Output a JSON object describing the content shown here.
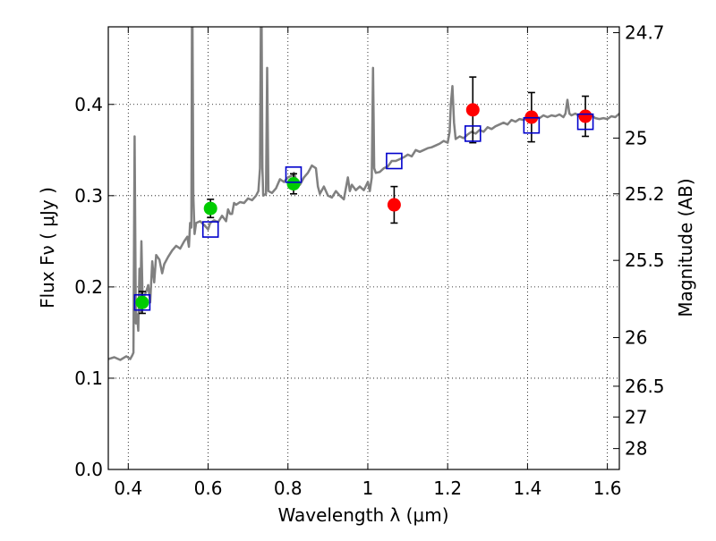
{
  "chart_data": {
    "type": "scatter",
    "xlabel": "Wavelength  λ (μm)",
    "ylabel": "Flux  Fν  ( μJy )",
    "y2label": "Magnitude (AB)",
    "xlim": [
      0.35,
      1.63
    ],
    "ylim": [
      0.0,
      0.485
    ],
    "x_ticks": [
      0.4,
      0.6,
      0.8,
      1.0,
      1.2,
      1.4,
      1.6
    ],
    "x_tick_labels": [
      "0.4",
      "0.6",
      "0.8",
      "1",
      "1.2",
      "1.4",
      "1.6"
    ],
    "y_ticks": [
      0.0,
      0.1,
      0.2,
      0.3,
      0.4
    ],
    "y_tick_labels": [
      "0.0",
      "0.1",
      "0.2",
      "0.3",
      "0.4"
    ],
    "y2_ticks": [
      {
        "label": "24.7",
        "flux": 0.4786
      },
      {
        "label": "25",
        "flux": 0.3631
      },
      {
        "label": "25.2",
        "flux": 0.302
      },
      {
        "label": "25.5",
        "flux": 0.2291
      },
      {
        "label": "26",
        "flux": 0.1445
      },
      {
        "label": "26.5",
        "flux": 0.0912
      },
      {
        "label": "27",
        "flux": 0.0575
      },
      {
        "label": "28",
        "flux": 0.0229
      }
    ],
    "grid": true,
    "colors": {
      "spectrum": "#808080",
      "green_points": "#00cc00",
      "red_points": "#ff0000",
      "model_squares": "#0000cc",
      "errorbars": "#000000"
    },
    "series": [
      {
        "name": "template spectrum",
        "kind": "line",
        "points": [
          [
            0.35,
            0.121
          ],
          [
            0.365,
            0.123
          ],
          [
            0.38,
            0.12
          ],
          [
            0.395,
            0.124
          ],
          [
            0.405,
            0.121
          ],
          [
            0.41,
            0.125
          ],
          [
            0.413,
            0.128
          ],
          [
            0.416,
            0.365
          ],
          [
            0.419,
            0.16
          ],
          [
            0.422,
            0.17
          ],
          [
            0.425,
            0.152
          ],
          [
            0.428,
            0.22
          ],
          [
            0.43,
            0.172
          ],
          [
            0.433,
            0.25
          ],
          [
            0.436,
            0.182
          ],
          [
            0.44,
            0.19
          ],
          [
            0.445,
            0.195
          ],
          [
            0.45,
            0.202
          ],
          [
            0.455,
            0.183
          ],
          [
            0.46,
            0.228
          ],
          [
            0.465,
            0.205
          ],
          [
            0.47,
            0.235
          ],
          [
            0.478,
            0.23
          ],
          [
            0.485,
            0.215
          ],
          [
            0.49,
            0.225
          ],
          [
            0.5,
            0.233
          ],
          [
            0.51,
            0.24
          ],
          [
            0.52,
            0.245
          ],
          [
            0.53,
            0.242
          ],
          [
            0.54,
            0.25
          ],
          [
            0.548,
            0.255
          ],
          [
            0.552,
            0.244
          ],
          [
            0.555,
            0.27
          ],
          [
            0.558,
            0.265
          ],
          [
            0.56,
            0.56
          ],
          [
            0.563,
            0.3
          ],
          [
            0.566,
            0.258
          ],
          [
            0.57,
            0.27
          ],
          [
            0.58,
            0.272
          ],
          [
            0.59,
            0.268
          ],
          [
            0.6,
            0.263
          ],
          [
            0.605,
            0.27
          ],
          [
            0.615,
            0.273
          ],
          [
            0.625,
            0.271
          ],
          [
            0.635,
            0.278
          ],
          [
            0.645,
            0.272
          ],
          [
            0.65,
            0.285
          ],
          [
            0.655,
            0.28
          ],
          [
            0.66,
            0.28
          ],
          [
            0.665,
            0.292
          ],
          [
            0.67,
            0.29
          ],
          [
            0.68,
            0.293
          ],
          [
            0.69,
            0.292
          ],
          [
            0.7,
            0.297
          ],
          [
            0.71,
            0.295
          ],
          [
            0.72,
            0.3
          ],
          [
            0.726,
            0.305
          ],
          [
            0.73,
            0.33
          ],
          [
            0.733,
            0.56
          ],
          [
            0.736,
            0.33
          ],
          [
            0.738,
            0.3
          ],
          [
            0.745,
            0.302
          ],
          [
            0.748,
            0.44
          ],
          [
            0.751,
            0.305
          ],
          [
            0.76,
            0.303
          ],
          [
            0.77,
            0.308
          ],
          [
            0.78,
            0.318
          ],
          [
            0.79,
            0.315
          ],
          [
            0.8,
            0.32
          ],
          [
            0.81,
            0.322
          ],
          [
            0.815,
            0.325
          ],
          [
            0.82,
            0.318
          ],
          [
            0.83,
            0.312
          ],
          [
            0.84,
            0.32
          ],
          [
            0.85,
            0.325
          ],
          [
            0.86,
            0.333
          ],
          [
            0.87,
            0.33
          ],
          [
            0.875,
            0.31
          ],
          [
            0.88,
            0.302
          ],
          [
            0.89,
            0.31
          ],
          [
            0.9,
            0.3
          ],
          [
            0.91,
            0.298
          ],
          [
            0.92,
            0.305
          ],
          [
            0.93,
            0.3
          ],
          [
            0.94,
            0.296
          ],
          [
            0.95,
            0.32
          ],
          [
            0.955,
            0.305
          ],
          [
            0.96,
            0.312
          ],
          [
            0.97,
            0.306
          ],
          [
            0.98,
            0.31
          ],
          [
            0.99,
            0.306
          ],
          [
            1.0,
            0.315
          ],
          [
            1.005,
            0.305
          ],
          [
            1.01,
            0.32
          ],
          [
            1.013,
            0.44
          ],
          [
            1.016,
            0.33
          ],
          [
            1.02,
            0.325
          ],
          [
            1.03,
            0.326
          ],
          [
            1.04,
            0.33
          ],
          [
            1.05,
            0.332
          ],
          [
            1.06,
            0.338
          ],
          [
            1.07,
            0.338
          ],
          [
            1.08,
            0.34
          ],
          [
            1.09,
            0.342
          ],
          [
            1.1,
            0.345
          ],
          [
            1.11,
            0.343
          ],
          [
            1.12,
            0.35
          ],
          [
            1.13,
            0.348
          ],
          [
            1.14,
            0.35
          ],
          [
            1.15,
            0.352
          ],
          [
            1.16,
            0.353
          ],
          [
            1.17,
            0.355
          ],
          [
            1.18,
            0.357
          ],
          [
            1.19,
            0.36
          ],
          [
            1.2,
            0.358
          ],
          [
            1.205,
            0.37
          ],
          [
            1.208,
            0.4
          ],
          [
            1.212,
            0.42
          ],
          [
            1.216,
            0.38
          ],
          [
            1.22,
            0.362
          ],
          [
            1.23,
            0.365
          ],
          [
            1.24,
            0.363
          ],
          [
            1.25,
            0.367
          ],
          [
            1.26,
            0.37
          ],
          [
            1.27,
            0.368
          ],
          [
            1.28,
            0.372
          ],
          [
            1.29,
            0.37
          ],
          [
            1.3,
            0.375
          ],
          [
            1.31,
            0.373
          ],
          [
            1.32,
            0.376
          ],
          [
            1.33,
            0.378
          ],
          [
            1.34,
            0.38
          ],
          [
            1.35,
            0.378
          ],
          [
            1.36,
            0.383
          ],
          [
            1.37,
            0.381
          ],
          [
            1.38,
            0.384
          ],
          [
            1.39,
            0.383
          ],
          [
            1.4,
            0.385
          ],
          [
            1.41,
            0.384
          ],
          [
            1.42,
            0.387
          ],
          [
            1.43,
            0.385
          ],
          [
            1.44,
            0.388
          ],
          [
            1.45,
            0.386
          ],
          [
            1.46,
            0.388
          ],
          [
            1.47,
            0.387
          ],
          [
            1.48,
            0.389
          ],
          [
            1.49,
            0.386
          ],
          [
            1.495,
            0.39
          ],
          [
            1.5,
            0.405
          ],
          [
            1.505,
            0.39
          ],
          [
            1.51,
            0.388
          ],
          [
            1.52,
            0.39
          ],
          [
            1.53,
            0.387
          ],
          [
            1.54,
            0.389
          ],
          [
            1.55,
            0.386
          ],
          [
            1.56,
            0.388
          ],
          [
            1.57,
            0.385
          ],
          [
            1.58,
            0.384
          ],
          [
            1.59,
            0.385
          ],
          [
            1.6,
            0.384
          ],
          [
            1.61,
            0.387
          ],
          [
            1.62,
            0.386
          ],
          [
            1.63,
            0.39
          ]
        ]
      },
      {
        "name": "photometry (green)",
        "kind": "points",
        "color": "green",
        "points": [
          {
            "x": 0.435,
            "y": 0.183,
            "err": 0.012
          },
          {
            "x": 0.606,
            "y": 0.286,
            "err": 0.01
          },
          {
            "x": 0.814,
            "y": 0.313,
            "err": 0.011
          }
        ]
      },
      {
        "name": "photometry (red)",
        "kind": "points",
        "color": "red",
        "points": [
          {
            "x": 1.066,
            "y": 0.29,
            "err": 0.02
          },
          {
            "x": 1.263,
            "y": 0.394,
            "err": 0.036
          },
          {
            "x": 1.41,
            "y": 0.386,
            "err": 0.027
          },
          {
            "x": 1.545,
            "y": 0.387,
            "err": 0.022
          }
        ]
      },
      {
        "name": "model photometry",
        "kind": "squares",
        "color": "blue",
        "points": [
          {
            "x": 0.435,
            "y": 0.183
          },
          {
            "x": 0.606,
            "y": 0.263
          },
          {
            "x": 0.814,
            "y": 0.323
          },
          {
            "x": 1.066,
            "y": 0.338
          },
          {
            "x": 1.263,
            "y": 0.368
          },
          {
            "x": 1.41,
            "y": 0.377
          },
          {
            "x": 1.545,
            "y": 0.381
          }
        ]
      }
    ]
  }
}
